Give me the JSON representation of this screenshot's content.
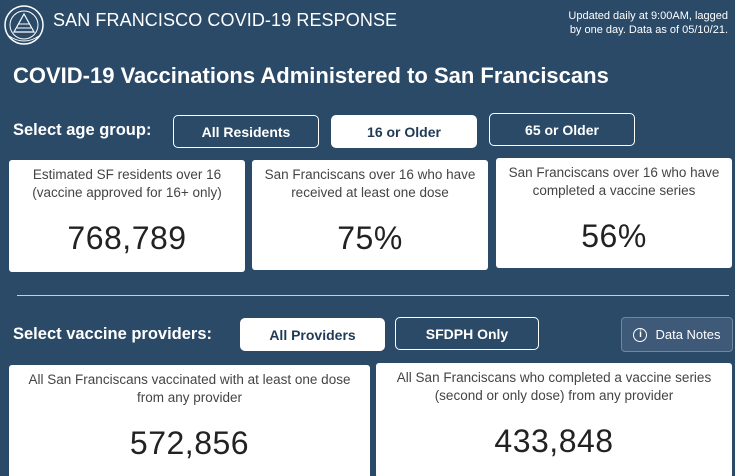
{
  "header": {
    "brand": "SAN FRANCISCO COVID-19 RESPONSE",
    "updated_line1": "Updated daily at 9:00AM, lagged",
    "updated_line2": "by one day. Data as of 05/10/21.",
    "seal_icon": "city-seal-icon"
  },
  "title": "COVID-19 Vaccinations Administered to San Franciscans",
  "age_group": {
    "label": "Select age group:",
    "options": [
      "All Residents",
      "16 or Older",
      "65 or Older"
    ],
    "selected": "16 or Older"
  },
  "age_cards": [
    {
      "desc": "Estimated SF residents over 16 (vaccine approved for 16+ only)",
      "value": "768,789"
    },
    {
      "desc": "San Franciscans over 16 who have received at least one dose",
      "value": "75%"
    },
    {
      "desc": "San Franciscans over 16 who have completed a vaccine series",
      "value": "56%"
    }
  ],
  "providers": {
    "label": "Select vaccine providers:",
    "options": [
      "All Providers",
      "SFDPH Only"
    ],
    "selected": "All Providers",
    "notes_label": "Data Notes",
    "notes_icon": "info-icon"
  },
  "provider_cards": [
    {
      "desc": "All San Franciscans vaccinated with at least one dose from any provider",
      "value": "572,856"
    },
    {
      "desc": "All San Franciscans who completed a vaccine series (second or only dose) from any provider",
      "value": "433,848"
    }
  ],
  "colors": {
    "background": "#2a4a68",
    "card": "#ffffff",
    "active_pill_text": "#1f3a56"
  }
}
